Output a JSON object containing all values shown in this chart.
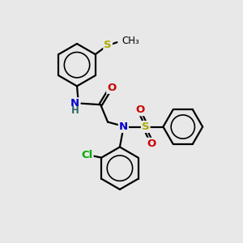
{
  "bg_color": "#e8e8e8",
  "bond_color": "#000000",
  "bond_width": 1.6,
  "font_size": 9.5,
  "fig_size": [
    3.0,
    3.0
  ],
  "dpi": 100,
  "colors": {
    "N": "#0000cc",
    "O": "#cc0000",
    "S": "#aaaa00",
    "Cl": "#00aa00",
    "H": "#336666",
    "C": "#000000"
  }
}
